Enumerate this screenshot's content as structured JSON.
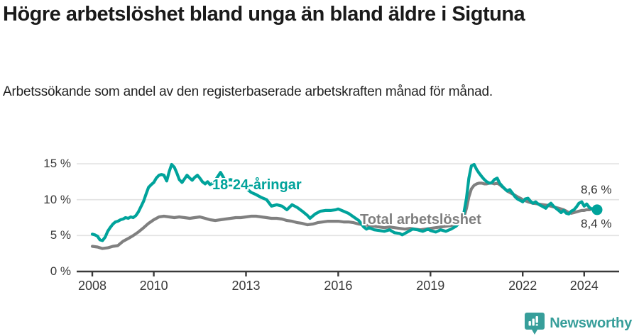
{
  "header": {
    "title": "Högre arbetslöshet bland unga än bland äldre i Sigtuna",
    "subtitle": "Arbetssökande som andel av den registerbaserade arbetskraften månad för månad."
  },
  "colors": {
    "young_line": "#00a39b",
    "total_line": "#808080",
    "axis": "#3a3a3a",
    "grid": "#e2e2e2",
    "text_dark": "#1a1a1a",
    "brand_teal": "#379e9a"
  },
  "footer": {
    "brand": "Newsworthy",
    "brand_icon": "bar-chart-speech-bubble"
  },
  "chart_data": {
    "type": "line",
    "title": "Högre arbetslöshet bland unga än bland äldre i Sigtuna",
    "subtitle": "Arbetssökande som andel av den registerbaserade arbetskraften månad för månad.",
    "xlabel": "",
    "ylabel": "",
    "x_range": [
      2007.45,
      2025.1
    ],
    "ylim": [
      0,
      15.8
    ],
    "grid": "horizontal-only",
    "legend_position": "inline-labels",
    "y_axis": {
      "tick_values": [
        0,
        5,
        10,
        15
      ],
      "tick_labels": [
        "0 %",
        "5 %",
        "10 %",
        "15 %"
      ]
    },
    "x_axis": {
      "tick_values": [
        2008,
        2010,
        2013,
        2016,
        2019,
        2022,
        2024
      ],
      "tick_labels": [
        "2008",
        "2010",
        "2013",
        "2016",
        "2019",
        "2022",
        "2024"
      ]
    },
    "series": [
      {
        "name": "18-24-åringar",
        "color": "#00a39b",
        "end_value": 8.6,
        "end_label": "8,6 %",
        "end_marker": true,
        "points": [
          [
            2008.0,
            5.2
          ],
          [
            2008.08,
            5.1
          ],
          [
            2008.17,
            4.9
          ],
          [
            2008.25,
            4.4
          ],
          [
            2008.33,
            4.3
          ],
          [
            2008.42,
            4.8
          ],
          [
            2008.5,
            5.6
          ],
          [
            2008.58,
            6.1
          ],
          [
            2008.67,
            6.6
          ],
          [
            2008.75,
            6.9
          ],
          [
            2008.83,
            7.0
          ],
          [
            2008.92,
            7.2
          ],
          [
            2009.0,
            7.3
          ],
          [
            2009.08,
            7.5
          ],
          [
            2009.17,
            7.4
          ],
          [
            2009.25,
            7.6
          ],
          [
            2009.33,
            7.5
          ],
          [
            2009.42,
            7.8
          ],
          [
            2009.5,
            8.3
          ],
          [
            2009.58,
            9.0
          ],
          [
            2009.67,
            9.8
          ],
          [
            2009.75,
            10.8
          ],
          [
            2009.83,
            11.7
          ],
          [
            2009.92,
            12.1
          ],
          [
            2010.0,
            12.4
          ],
          [
            2010.08,
            13.0
          ],
          [
            2010.17,
            13.4
          ],
          [
            2010.25,
            13.5
          ],
          [
            2010.33,
            13.4
          ],
          [
            2010.42,
            12.6
          ],
          [
            2010.5,
            13.9
          ],
          [
            2010.58,
            14.9
          ],
          [
            2010.67,
            14.5
          ],
          [
            2010.75,
            13.7
          ],
          [
            2010.83,
            12.8
          ],
          [
            2010.92,
            12.4
          ],
          [
            2011.0,
            12.9
          ],
          [
            2011.08,
            13.4
          ],
          [
            2011.17,
            13.0
          ],
          [
            2011.25,
            12.7
          ],
          [
            2011.33,
            13.1
          ],
          [
            2011.42,
            13.4
          ],
          [
            2011.5,
            13.0
          ],
          [
            2011.58,
            12.5
          ],
          [
            2011.67,
            12.2
          ],
          [
            2011.75,
            12.5
          ],
          [
            2011.83,
            12.1
          ],
          [
            2011.92,
            12.3
          ],
          [
            2012.0,
            12.7
          ],
          [
            2012.08,
            13.2
          ],
          [
            2012.17,
            13.8
          ],
          [
            2012.25,
            13.2
          ],
          [
            2012.33,
            12.6
          ],
          [
            2012.5,
            12.8
          ],
          [
            2012.67,
            12.5
          ],
          [
            2012.83,
            12.2
          ],
          [
            2013.0,
            11.6
          ],
          [
            2013.17,
            11.0
          ],
          [
            2013.33,
            10.7
          ],
          [
            2013.5,
            10.3
          ],
          [
            2013.67,
            10.0
          ],
          [
            2013.83,
            9.1
          ],
          [
            2014.0,
            9.3
          ],
          [
            2014.17,
            9.1
          ],
          [
            2014.33,
            8.6
          ],
          [
            2014.5,
            9.3
          ],
          [
            2014.67,
            8.9
          ],
          [
            2014.83,
            8.4
          ],
          [
            2015.0,
            7.8
          ],
          [
            2015.08,
            7.4
          ],
          [
            2015.25,
            8.0
          ],
          [
            2015.42,
            8.4
          ],
          [
            2015.58,
            8.5
          ],
          [
            2015.75,
            8.5
          ],
          [
            2015.92,
            8.6
          ],
          [
            2016.0,
            8.7
          ],
          [
            2016.17,
            8.4
          ],
          [
            2016.33,
            8.1
          ],
          [
            2016.5,
            7.6
          ],
          [
            2016.67,
            7.1
          ],
          [
            2016.83,
            6.2
          ],
          [
            2016.92,
            5.9
          ],
          [
            2017.0,
            6.1
          ],
          [
            2017.17,
            5.8
          ],
          [
            2017.33,
            5.7
          ],
          [
            2017.5,
            5.6
          ],
          [
            2017.67,
            5.8
          ],
          [
            2017.83,
            5.4
          ],
          [
            2018.0,
            5.3
          ],
          [
            2018.08,
            5.1
          ],
          [
            2018.25,
            5.5
          ],
          [
            2018.42,
            5.9
          ],
          [
            2018.58,
            5.8
          ],
          [
            2018.75,
            5.6
          ],
          [
            2018.92,
            5.9
          ],
          [
            2019.0,
            5.7
          ],
          [
            2019.17,
            5.5
          ],
          [
            2019.33,
            5.8
          ],
          [
            2019.5,
            5.6
          ],
          [
            2019.67,
            5.9
          ],
          [
            2019.83,
            6.3
          ],
          [
            2020.0,
            7.0
          ],
          [
            2020.08,
            8.0
          ],
          [
            2020.17,
            10.2
          ],
          [
            2020.25,
            13.0
          ],
          [
            2020.33,
            14.7
          ],
          [
            2020.42,
            14.9
          ],
          [
            2020.5,
            14.2
          ],
          [
            2020.58,
            13.7
          ],
          [
            2020.67,
            13.2
          ],
          [
            2020.75,
            12.8
          ],
          [
            2020.83,
            12.5
          ],
          [
            2020.92,
            12.3
          ],
          [
            2021.0,
            12.4
          ],
          [
            2021.08,
            12.8
          ],
          [
            2021.17,
            13.0
          ],
          [
            2021.25,
            12.3
          ],
          [
            2021.33,
            11.9
          ],
          [
            2021.42,
            11.5
          ],
          [
            2021.5,
            11.2
          ],
          [
            2021.58,
            11.4
          ],
          [
            2021.67,
            10.9
          ],
          [
            2021.75,
            10.4
          ],
          [
            2021.83,
            10.1
          ],
          [
            2021.92,
            9.9
          ],
          [
            2022.0,
            9.7
          ],
          [
            2022.08,
            10.1
          ],
          [
            2022.17,
            10.2
          ],
          [
            2022.25,
            9.8
          ],
          [
            2022.33,
            9.5
          ],
          [
            2022.42,
            9.7
          ],
          [
            2022.5,
            9.4
          ],
          [
            2022.58,
            9.2
          ],
          [
            2022.67,
            9.0
          ],
          [
            2022.75,
            8.8
          ],
          [
            2022.83,
            9.2
          ],
          [
            2022.92,
            9.5
          ],
          [
            2023.0,
            9.1
          ],
          [
            2023.08,
            8.8
          ],
          [
            2023.17,
            8.5
          ],
          [
            2023.25,
            8.2
          ],
          [
            2023.33,
            8.5
          ],
          [
            2023.42,
            8.1
          ],
          [
            2023.5,
            8.0
          ],
          [
            2023.58,
            8.4
          ],
          [
            2023.67,
            8.6
          ],
          [
            2023.75,
            9.0
          ],
          [
            2023.83,
            9.5
          ],
          [
            2023.92,
            9.7
          ],
          [
            2024.0,
            9.1
          ],
          [
            2024.08,
            9.4
          ],
          [
            2024.17,
            8.9
          ],
          [
            2024.25,
            8.7
          ],
          [
            2024.33,
            8.8
          ],
          [
            2024.42,
            8.6
          ]
        ]
      },
      {
        "name": "Total arbetslöshet",
        "color": "#808080",
        "end_value": 8.4,
        "end_label": "8,4 %",
        "end_marker": false,
        "points": [
          [
            2008.0,
            3.5
          ],
          [
            2008.17,
            3.4
          ],
          [
            2008.33,
            3.2
          ],
          [
            2008.5,
            3.3
          ],
          [
            2008.67,
            3.5
          ],
          [
            2008.83,
            3.6
          ],
          [
            2009.0,
            4.2
          ],
          [
            2009.17,
            4.6
          ],
          [
            2009.33,
            5.0
          ],
          [
            2009.5,
            5.5
          ],
          [
            2009.67,
            6.1
          ],
          [
            2009.83,
            6.7
          ],
          [
            2010.0,
            7.2
          ],
          [
            2010.17,
            7.6
          ],
          [
            2010.33,
            7.7
          ],
          [
            2010.5,
            7.6
          ],
          [
            2010.67,
            7.5
          ],
          [
            2010.83,
            7.6
          ],
          [
            2011.0,
            7.5
          ],
          [
            2011.17,
            7.4
          ],
          [
            2011.33,
            7.5
          ],
          [
            2011.5,
            7.6
          ],
          [
            2011.67,
            7.4
          ],
          [
            2011.83,
            7.2
          ],
          [
            2012.0,
            7.1
          ],
          [
            2012.17,
            7.2
          ],
          [
            2012.33,
            7.3
          ],
          [
            2012.5,
            7.4
          ],
          [
            2012.67,
            7.5
          ],
          [
            2012.83,
            7.5
          ],
          [
            2013.0,
            7.6
          ],
          [
            2013.17,
            7.7
          ],
          [
            2013.33,
            7.7
          ],
          [
            2013.5,
            7.6
          ],
          [
            2013.67,
            7.5
          ],
          [
            2013.83,
            7.4
          ],
          [
            2014.0,
            7.4
          ],
          [
            2014.17,
            7.3
          ],
          [
            2014.33,
            7.1
          ],
          [
            2014.5,
            7.0
          ],
          [
            2014.67,
            6.8
          ],
          [
            2014.83,
            6.7
          ],
          [
            2015.0,
            6.5
          ],
          [
            2015.17,
            6.6
          ],
          [
            2015.33,
            6.8
          ],
          [
            2015.5,
            6.9
          ],
          [
            2015.67,
            7.0
          ],
          [
            2015.83,
            7.0
          ],
          [
            2016.0,
            7.0
          ],
          [
            2016.17,
            6.9
          ],
          [
            2016.33,
            6.9
          ],
          [
            2016.5,
            6.8
          ],
          [
            2016.67,
            6.6
          ],
          [
            2016.83,
            6.5
          ],
          [
            2017.0,
            6.4
          ],
          [
            2017.17,
            6.3
          ],
          [
            2017.33,
            6.2
          ],
          [
            2017.5,
            6.1
          ],
          [
            2017.67,
            6.2
          ],
          [
            2017.83,
            6.1
          ],
          [
            2018.0,
            6.0
          ],
          [
            2018.17,
            5.9
          ],
          [
            2018.33,
            6.0
          ],
          [
            2018.5,
            5.9
          ],
          [
            2018.67,
            5.8
          ],
          [
            2018.83,
            5.9
          ],
          [
            2019.0,
            6.0
          ],
          [
            2019.17,
            6.1
          ],
          [
            2019.33,
            6.2
          ],
          [
            2019.5,
            6.3
          ],
          [
            2019.67,
            6.4
          ],
          [
            2019.83,
            6.6
          ],
          [
            2020.0,
            7.0
          ],
          [
            2020.08,
            7.5
          ],
          [
            2020.17,
            8.8
          ],
          [
            2020.25,
            10.4
          ],
          [
            2020.33,
            11.5
          ],
          [
            2020.42,
            12.0
          ],
          [
            2020.5,
            12.2
          ],
          [
            2020.58,
            12.3
          ],
          [
            2020.67,
            12.3
          ],
          [
            2020.75,
            12.2
          ],
          [
            2020.83,
            12.2
          ],
          [
            2020.92,
            12.3
          ],
          [
            2021.0,
            12.3
          ],
          [
            2021.08,
            12.2
          ],
          [
            2021.17,
            12.3
          ],
          [
            2021.25,
            12.1
          ],
          [
            2021.33,
            11.8
          ],
          [
            2021.42,
            11.5
          ],
          [
            2021.5,
            11.2
          ],
          [
            2021.58,
            11.0
          ],
          [
            2021.67,
            10.8
          ],
          [
            2021.75,
            10.6
          ],
          [
            2021.83,
            10.4
          ],
          [
            2021.92,
            10.2
          ],
          [
            2022.0,
            10.0
          ],
          [
            2022.17,
            9.7
          ],
          [
            2022.33,
            9.5
          ],
          [
            2022.5,
            9.4
          ],
          [
            2022.67,
            9.3
          ],
          [
            2022.83,
            9.2
          ],
          [
            2023.0,
            9.0
          ],
          [
            2023.17,
            8.8
          ],
          [
            2023.33,
            8.6
          ],
          [
            2023.42,
            8.4
          ],
          [
            2023.5,
            8.2
          ],
          [
            2023.58,
            8.1
          ],
          [
            2023.67,
            8.2
          ],
          [
            2023.75,
            8.3
          ],
          [
            2023.83,
            8.4
          ],
          [
            2023.92,
            8.5
          ],
          [
            2024.0,
            8.5
          ],
          [
            2024.08,
            8.6
          ],
          [
            2024.17,
            8.6
          ],
          [
            2024.25,
            8.7
          ],
          [
            2024.33,
            8.5
          ],
          [
            2024.42,
            8.4
          ]
        ]
      }
    ]
  }
}
